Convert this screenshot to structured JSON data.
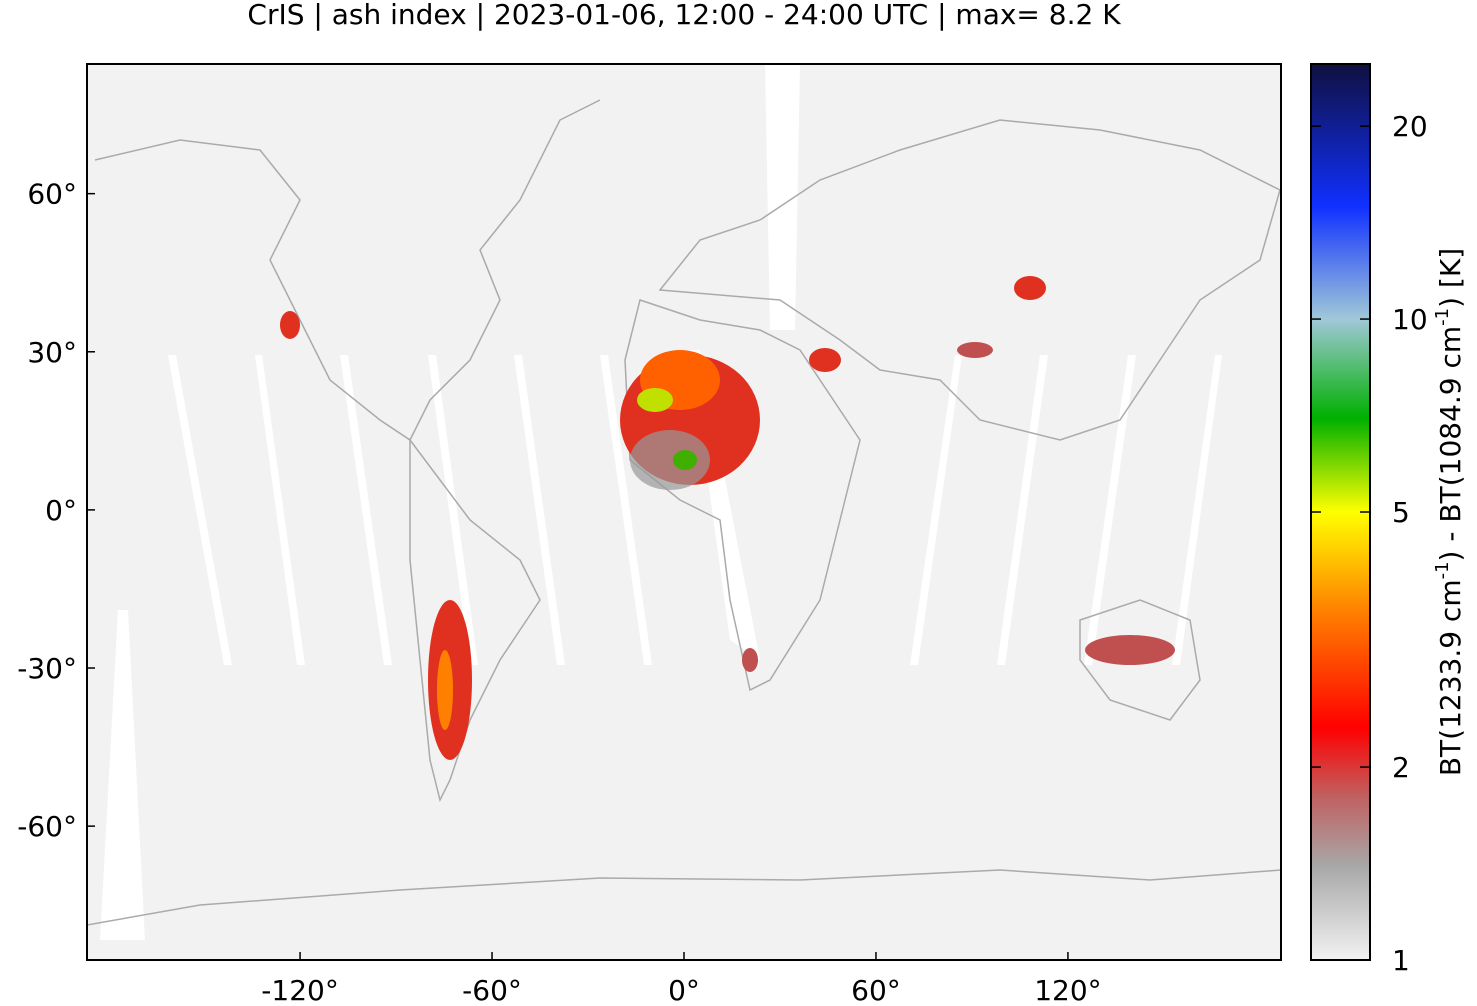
{
  "chart_data": {
    "type": "map",
    "title": "CrIS | ash index | 2023-01-06, 12:00 - 24:00 UTC | max= 8.2 K",
    "xlim": [
      -186.6,
      186.6
    ],
    "ylim": [
      -85.4,
      84.6
    ],
    "xticks": [
      {
        "value": -120,
        "label": "-120°"
      },
      {
        "value": -60,
        "label": "-60°"
      },
      {
        "value": 0,
        "label": "0°"
      },
      {
        "value": 60,
        "label": "60°"
      },
      {
        "value": 120,
        "label": "120°"
      }
    ],
    "yticks": [
      {
        "value": -60,
        "label": "-60°"
      },
      {
        "value": -30,
        "label": "-30°"
      },
      {
        "value": 0,
        "label": "0°"
      },
      {
        "value": 30,
        "label": "30°"
      },
      {
        "value": 60,
        "label": "60°"
      }
    ],
    "colorbar": {
      "log_scale": true,
      "clim": [
        1,
        25
      ],
      "ticks": [
        1,
        2,
        5,
        10,
        20
      ],
      "label_parts": [
        "BT(1233.9 cm",
        "-1",
        ") - BT(1084.9 cm",
        "-1",
        ") [K]"
      ],
      "colormap": [
        {
          "value": 1,
          "color": "#f2f2f2"
        },
        {
          "value": 1.4,
          "color": "#a8a8a8"
        },
        {
          "value": 1.8,
          "color": "#c06060"
        },
        {
          "value": 2.3,
          "color": "#ff0000"
        },
        {
          "value": 3.5,
          "color": "#ff8000"
        },
        {
          "value": 5,
          "color": "#ffff00"
        },
        {
          "value": 7,
          "color": "#00b000"
        },
        {
          "value": 10,
          "color": "#a0c8d8"
        },
        {
          "value": 15,
          "color": "#1030ff"
        },
        {
          "value": 25,
          "color": "#101040"
        }
      ]
    }
  }
}
